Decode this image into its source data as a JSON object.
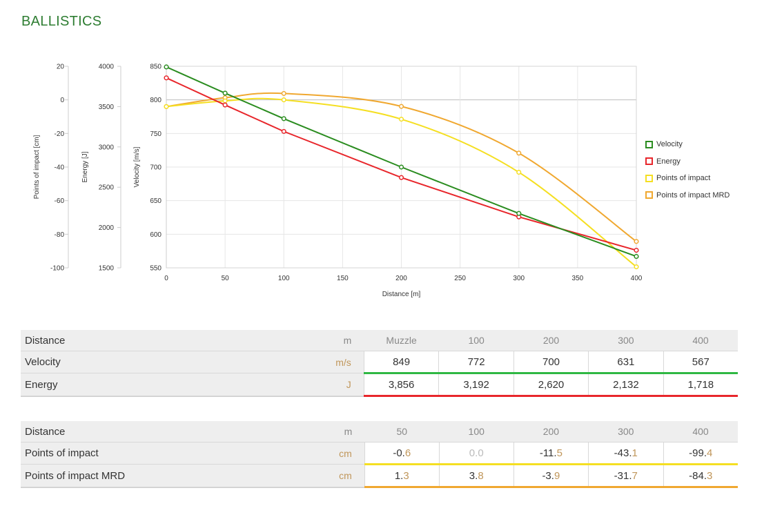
{
  "page_title": "BALLISTICS",
  "colors": {
    "velocity": "#2a8c1f",
    "energy": "#e8262b",
    "poi": "#f5df22",
    "poi_mrd": "#f0a830"
  },
  "chart_data": {
    "type": "line",
    "xlabel": "Distance [m]",
    "x": [
      0,
      50,
      100,
      200,
      300,
      400
    ],
    "xlim": [
      0,
      400
    ],
    "x_ticks": [
      "0",
      "50",
      "100",
      "150",
      "200",
      "250",
      "300",
      "350",
      "400"
    ],
    "grid": true,
    "legend_position": "right",
    "axes": {
      "poi": {
        "label": "Points of impact [cm]",
        "ylim": [
          -100,
          20
        ],
        "ticks": [
          "20",
          "0",
          "-20",
          "-40",
          "-60",
          "-80",
          "-100"
        ]
      },
      "energy": {
        "label": "Energy [J]",
        "ylim": [
          1500,
          4000
        ],
        "ticks": [
          "4000",
          "3500",
          "3000",
          "2500",
          "2000",
          "1500"
        ]
      },
      "velocity": {
        "label": "Velocity [m/s]",
        "ylim": [
          550,
          850
        ],
        "ticks": [
          "850",
          "800",
          "750",
          "700",
          "650",
          "600",
          "550"
        ]
      }
    },
    "series": [
      {
        "name": "Velocity",
        "axis": "velocity",
        "values": [
          849,
          810,
          772,
          700,
          631,
          567
        ]
      },
      {
        "name": "Energy",
        "axis": "energy",
        "values": [
          3856,
          3520,
          3192,
          2620,
          2132,
          1718
        ]
      },
      {
        "name": "Points of impact",
        "axis": "poi",
        "values": [
          -4,
          -0.6,
          0,
          -11.5,
          -43.1,
          -99.4
        ]
      },
      {
        "name": "Points of impact MRD",
        "axis": "poi",
        "values": [
          -4,
          1.3,
          3.8,
          -3.9,
          -31.7,
          -84.3
        ]
      }
    ]
  },
  "table1": {
    "header": {
      "label": "Distance",
      "unit": "m",
      "cols": [
        "Muzzle",
        "100",
        "200",
        "300",
        "400"
      ]
    },
    "rows": [
      {
        "label": "Velocity",
        "unit": "m/s",
        "values": [
          "849",
          "772",
          "700",
          "631",
          "567"
        ]
      },
      {
        "label": "Energy",
        "unit": "J",
        "values": [
          "3,856",
          "3,192",
          "2,620",
          "2,132",
          "1,718"
        ]
      }
    ]
  },
  "table2": {
    "header": {
      "label": "Distance",
      "unit": "m",
      "cols": [
        "50",
        "100",
        "200",
        "300",
        "400"
      ]
    },
    "rows": [
      {
        "label": "Points of impact",
        "unit": "cm",
        "values": [
          [
            "-0.",
            "6"
          ],
          [
            "0.",
            "0"
          ],
          [
            "-11.",
            "5"
          ],
          [
            "-43.",
            "1"
          ],
          [
            "-99.",
            "4"
          ]
        ]
      },
      {
        "label": "Points of impact MRD",
        "unit": "cm",
        "values": [
          [
            "1.",
            "3"
          ],
          [
            "3.",
            "8"
          ],
          [
            "-3.",
            "9"
          ],
          [
            "-31.",
            "7"
          ],
          [
            "-84.",
            "3"
          ]
        ]
      }
    ]
  }
}
